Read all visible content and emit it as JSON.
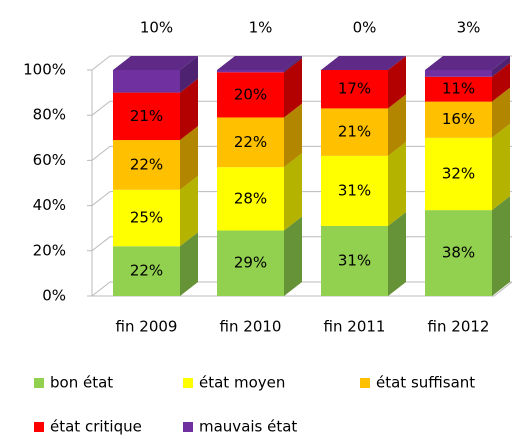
{
  "chart_data": {
    "type": "bar3d_stacked",
    "categories": [
      "fin 2009",
      "fin 2010",
      "fin 2011",
      "fin 2012"
    ],
    "series": [
      {
        "name": "bon état",
        "color": "#92d050",
        "values": [
          22,
          29,
          31,
          38
        ],
        "value_labels": [
          "22%",
          "29%",
          "31%",
          "38%"
        ]
      },
      {
        "name": "état moyen",
        "color": "#ffff00",
        "values": [
          25,
          28,
          31,
          32
        ],
        "value_labels": [
          "25%",
          "28%",
          "31%",
          "32%"
        ]
      },
      {
        "name": "état suffisant",
        "color": "#ffc000",
        "values": [
          22,
          22,
          21,
          16
        ],
        "value_labels": [
          "22%",
          "22%",
          "21%",
          "16%"
        ]
      },
      {
        "name": "état critique",
        "color": "#ff0000",
        "values": [
          21,
          20,
          17,
          11
        ],
        "value_labels": [
          "21%",
          "20%",
          "17%",
          "11%"
        ]
      },
      {
        "name": "mauvais état",
        "color": "#7030a0",
        "values": [
          10,
          1,
          0,
          3
        ],
        "value_labels": [
          "10%",
          "1%",
          "0%",
          "3%"
        ]
      }
    ],
    "ylim": [
      0,
      100
    ],
    "yticks": [
      {
        "value": 0,
        "label": "0%"
      },
      {
        "value": 20,
        "label": "20%"
      },
      {
        "value": 40,
        "label": "40%"
      },
      {
        "value": 60,
        "label": "60%"
      },
      {
        "value": 80,
        "label": "80%"
      },
      {
        "value": 100,
        "label": "100%"
      }
    ],
    "grid": true
  }
}
